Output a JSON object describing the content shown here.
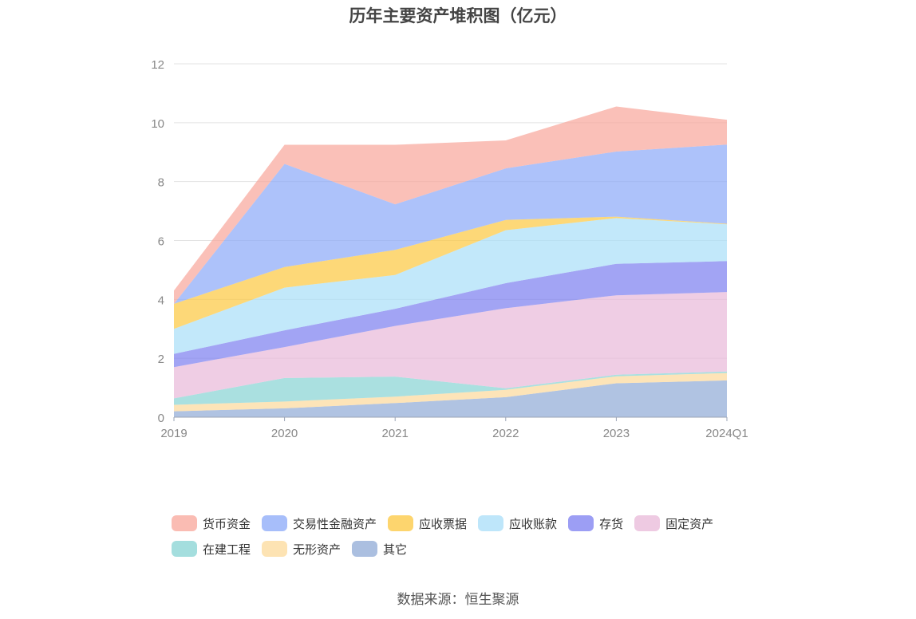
{
  "chart_data": {
    "type": "area",
    "stacked": true,
    "title": "历年主要资产堆积图（亿元）",
    "categories": [
      "2019",
      "2020",
      "2021",
      "2022",
      "2023",
      "2024Q1"
    ],
    "ylim": [
      0,
      12
    ],
    "yticks": [
      "0",
      "2",
      "4",
      "6",
      "8",
      "10",
      "12"
    ],
    "grid": true,
    "legend_position": "bottom",
    "series": [
      {
        "name": "其它",
        "color": "#8fa9d6",
        "values": [
          0.2,
          0.3,
          0.48,
          0.68,
          1.15,
          1.25
        ]
      },
      {
        "name": "无形资产",
        "color": "#fcd99a",
        "values": [
          0.22,
          0.23,
          0.22,
          0.25,
          0.24,
          0.25
        ]
      },
      {
        "name": "在建工程",
        "color": "#86d3d3",
        "values": [
          0.22,
          0.8,
          0.68,
          0.05,
          0.05,
          0.05
        ]
      },
      {
        "name": "固定资产",
        "color": "#e8b8d8",
        "values": [
          1.06,
          1.05,
          1.72,
          2.72,
          2.7,
          2.7
        ]
      },
      {
        "name": "存货",
        "color": "#7b7df0",
        "values": [
          0.45,
          0.57,
          0.58,
          0.85,
          1.07,
          1.05
        ]
      },
      {
        "name": "应收账款",
        "color": "#a8def8",
        "values": [
          0.85,
          1.45,
          1.15,
          1.8,
          1.55,
          1.25
        ]
      },
      {
        "name": "应收票据",
        "color": "#fcc73e",
        "values": [
          0.85,
          0.7,
          0.85,
          0.35,
          0.05,
          0.02
        ]
      },
      {
        "name": "交易性金融资产",
        "color": "#8aa8f8",
        "values": [
          0.0,
          3.5,
          1.55,
          1.75,
          2.21,
          2.69
        ]
      },
      {
        "name": "货币资金",
        "color": "#f8a59a",
        "values": [
          0.45,
          0.65,
          2.02,
          0.95,
          1.53,
          0.84
        ]
      }
    ],
    "legend_rows": [
      [
        "货币资金",
        "交易性金融资产",
        "应收票据",
        "应收账款",
        "存货",
        "固定资产"
      ],
      [
        "在建工程",
        "无形资产",
        "其它"
      ]
    ],
    "source": "数据来源：恒生聚源"
  }
}
